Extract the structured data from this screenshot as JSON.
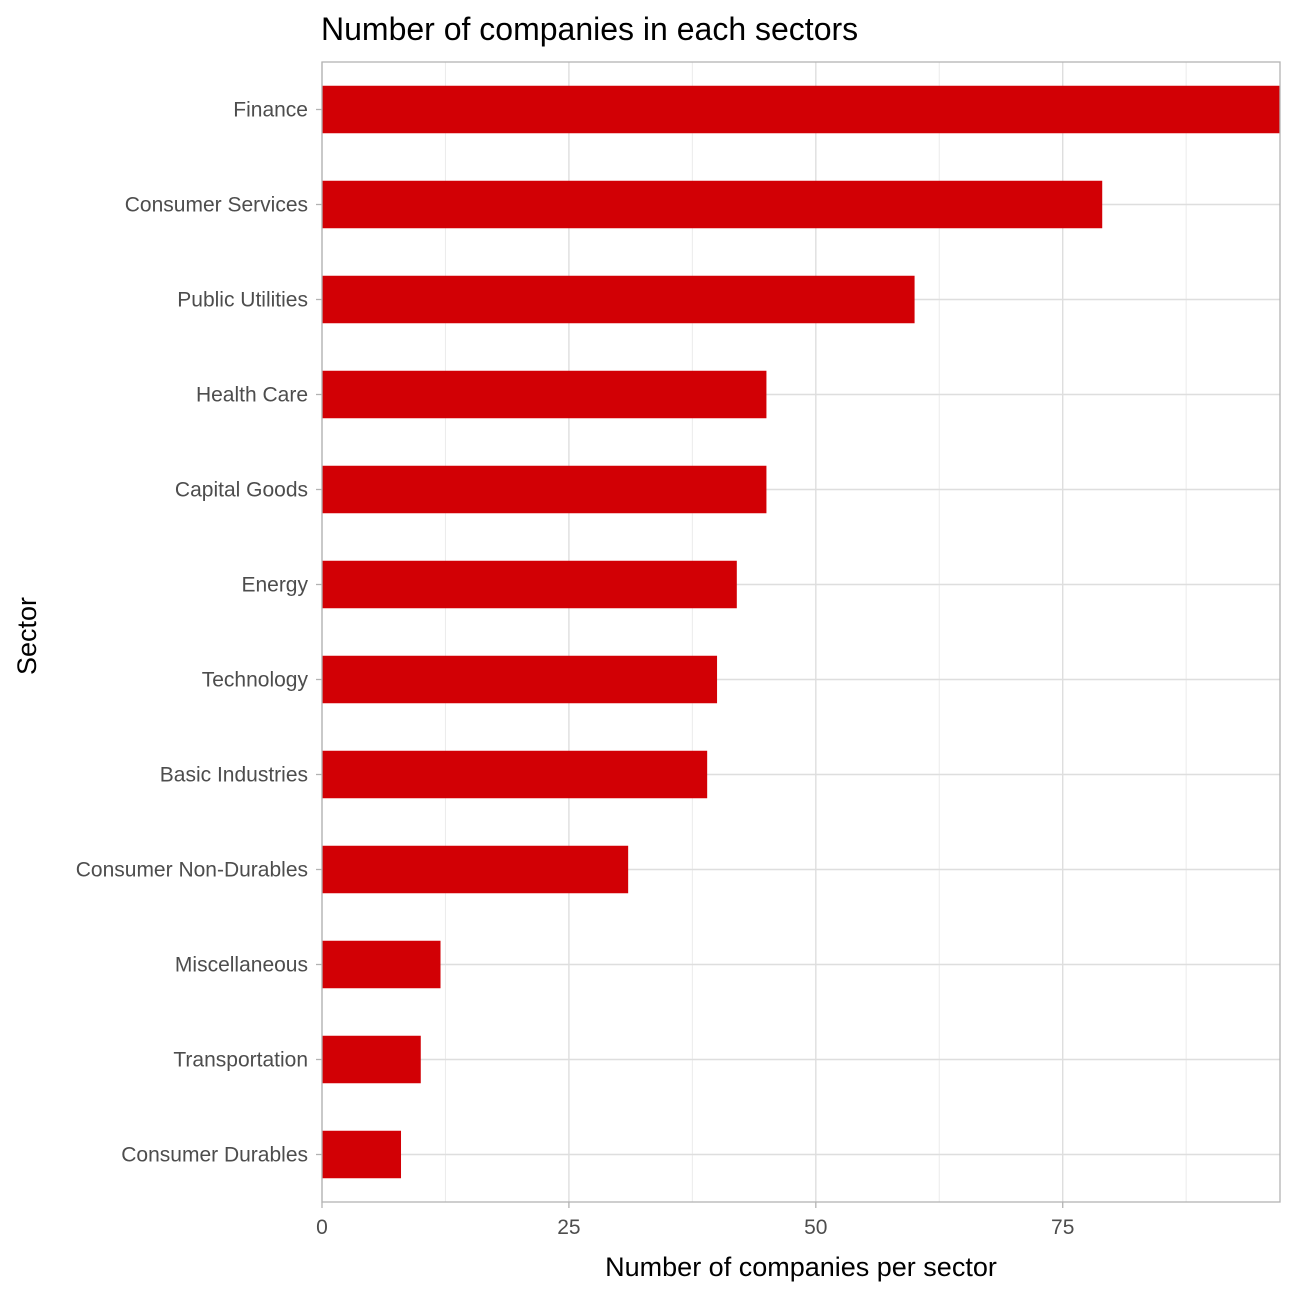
{
  "chart_data": {
    "type": "bar",
    "orientation": "horizontal",
    "title": "Number of companies in each sectors",
    "xlabel": "Number of companies per sector",
    "ylabel": "Sector",
    "categories": [
      "Finance",
      "Consumer Services",
      "Public Utilities",
      "Health Care",
      "Capital Goods",
      "Energy",
      "Technology",
      "Basic Industries",
      "Consumer Non-Durables",
      "Miscellaneous",
      "Transportation",
      "Consumer Durables"
    ],
    "values": [
      97,
      79,
      60,
      45,
      45,
      42,
      40,
      39,
      31,
      12,
      10,
      8
    ],
    "xlim": [
      0,
      97
    ],
    "x_ticks": [
      0,
      25,
      50,
      75
    ],
    "grid": true,
    "legend": "none",
    "bar_color": "#d20005",
    "grid_color": "#dedede",
    "border_color": "#b3b3b3"
  }
}
